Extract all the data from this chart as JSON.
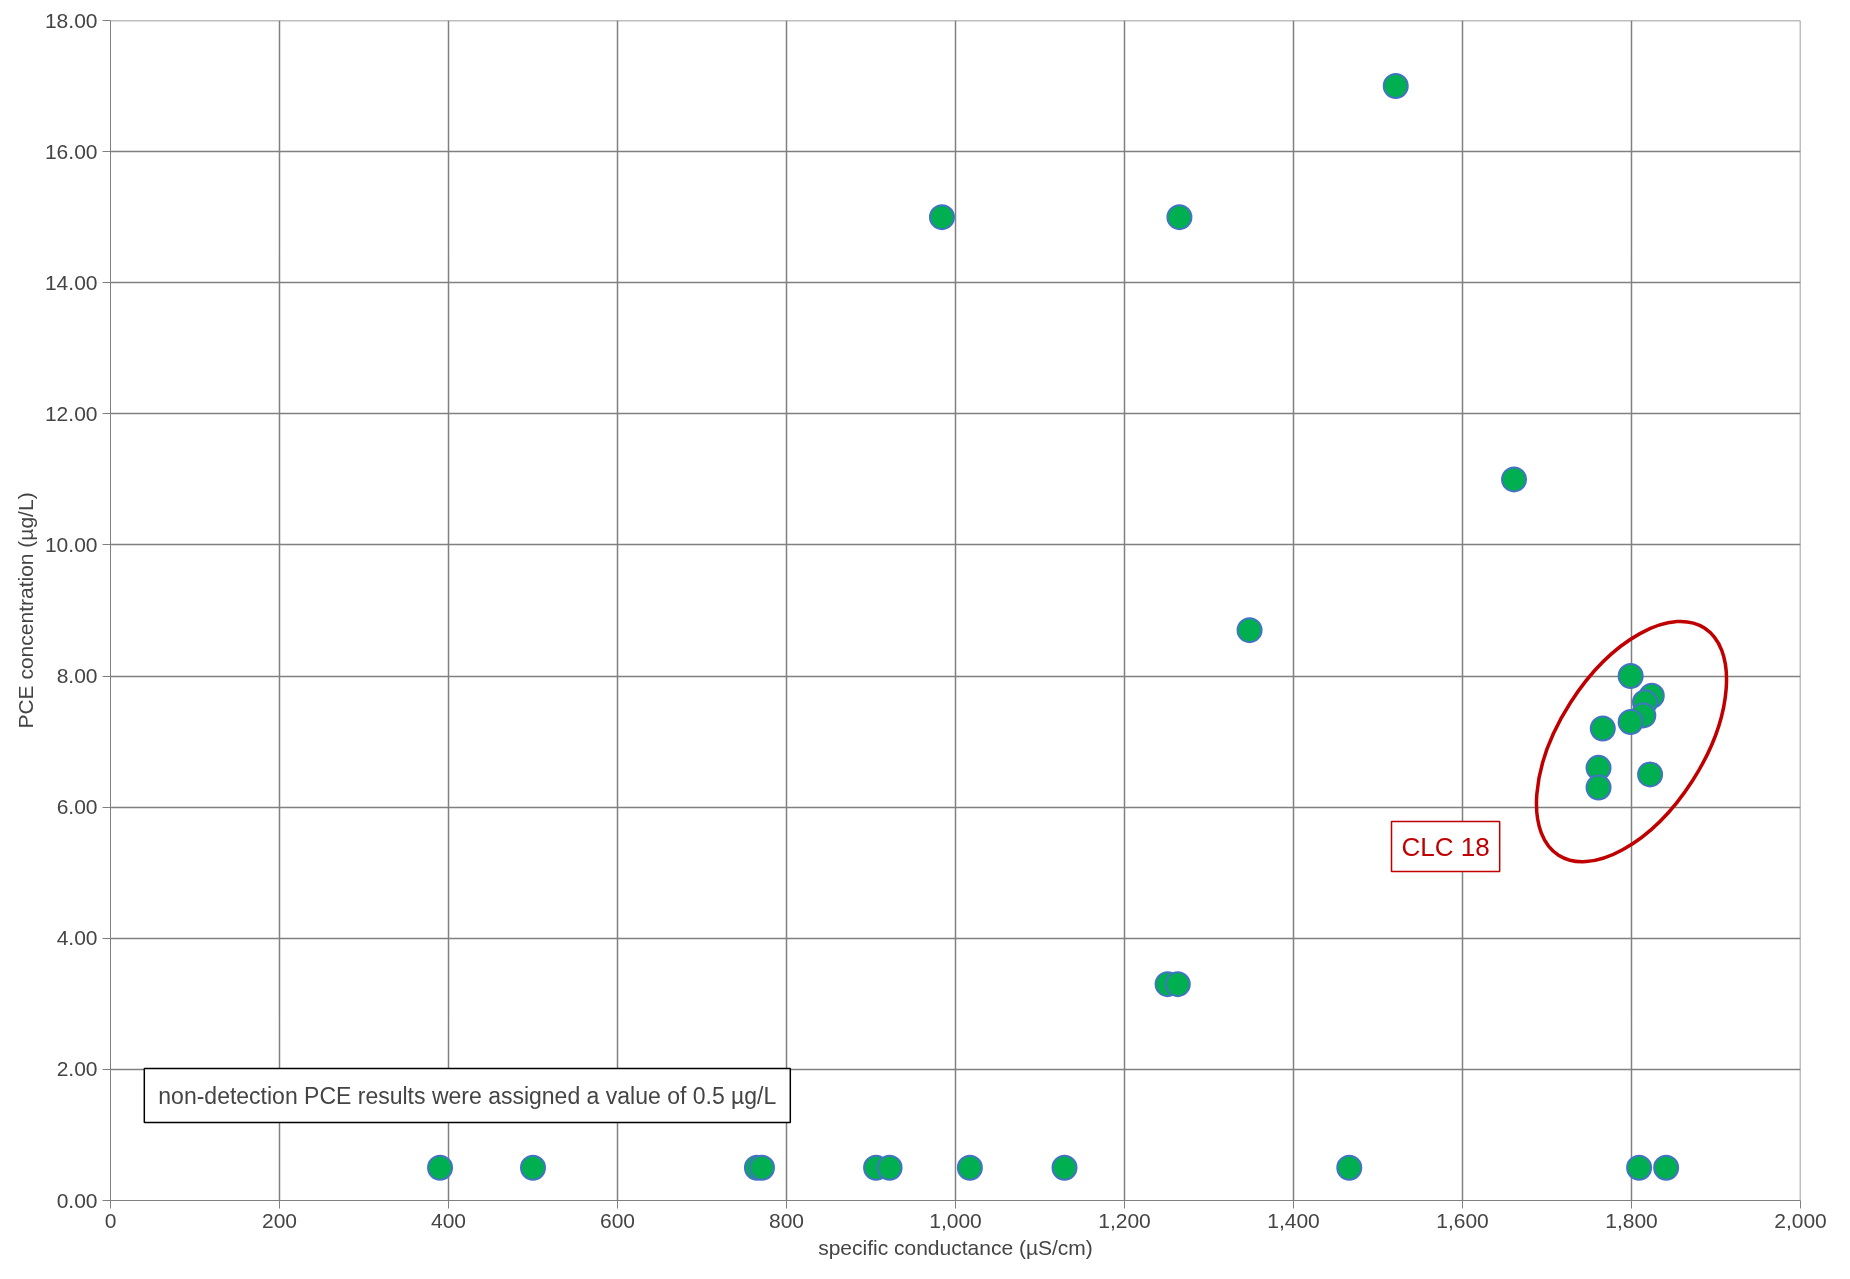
{
  "chart_data": {
    "type": "scatter",
    "xlabel": "specific conductance (µS/cm)",
    "ylabel": "PCE concentration (µg/L)",
    "x": [
      390,
      500,
      765,
      771,
      906,
      922,
      1017,
      1129,
      1466,
      1809,
      1841,
      1251,
      1263,
      984,
      1265,
      1521,
      1661,
      1348,
      1799,
      1824,
      1816,
      1814,
      1799,
      1766,
      1761,
      1761,
      1822
    ],
    "series": [
      {
        "color": "#00b050",
        "values": [
          0.5,
          0.5,
          0.5,
          0.5,
          0.5,
          0.5,
          0.5,
          0.5,
          0.5,
          0.5,
          0.5,
          3.3,
          3.3,
          15,
          15,
          17,
          11,
          8.7,
          8.0,
          7.7,
          7.6,
          7.4,
          7.3,
          7.2,
          6.6,
          6.3,
          6.5
        ]
      }
    ],
    "xlim": [
      0,
      2000
    ],
    "xticks": [
      0,
      200,
      400,
      600,
      800,
      {
        "value": 1000,
        "label": "1,000"
      },
      {
        "value": 1200,
        "label": "1,200"
      },
      {
        "value": 1400,
        "label": "1,400"
      },
      {
        "value": 1600,
        "label": "1,600"
      },
      {
        "value": 1800,
        "label": "1,800"
      },
      {
        "value": 2000,
        "label": "2,000"
      }
    ],
    "ylim": [
      0,
      18
    ],
    "yticks": [
      {
        "value": 0,
        "label": "0.00"
      },
      {
        "value": 2,
        "label": "2.00"
      },
      {
        "value": 4,
        "label": "4.00"
      },
      {
        "value": 6,
        "label": "6.00"
      },
      {
        "value": 8,
        "label": "8.00"
      },
      {
        "value": 10,
        "label": "10.00"
      },
      {
        "value": 12,
        "label": "12.00"
      },
      {
        "value": 14,
        "label": "14.00"
      },
      {
        "value": 16,
        "label": "16.00"
      },
      {
        "value": 18,
        "label": "18.00"
      }
    ],
    "grid": true,
    "marker": "circle",
    "annotations": [
      "CLC 18",
      "non-detection PCE results were assigned a value of 0.5 µg/L"
    ]
  }
}
